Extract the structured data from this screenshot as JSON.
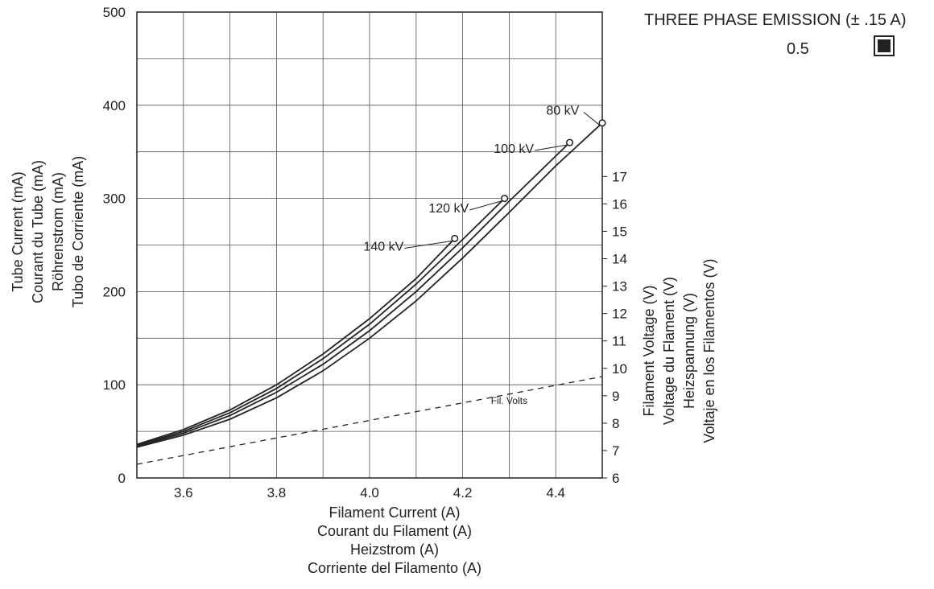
{
  "legend": {
    "title": "THREE PHASE EMISSION (± .15 A)",
    "value": "0.5",
    "swatch_color": "#222222"
  },
  "chart_data": {
    "type": "line",
    "xlabel": [
      "Filament Current (A)",
      "Courant du Filament (A)",
      "Heizstrom (A)",
      "Corriente del Filamento (A)"
    ],
    "ylabel": [
      "Tube Current (mA)",
      "Courant du Tube (mA)",
      "Röhrenstrom (mA)",
      "Tubo de Corriente (mA)"
    ],
    "y2label": [
      "Filament Voltage (V)",
      "Voltage du Flament  (V)",
      "Heizspannung (V)",
      "Voltaje en los Filamentos (V)"
    ],
    "xlim": [
      3.5,
      4.5
    ],
    "ylim": [
      0,
      500
    ],
    "y2lim": [
      6,
      23
    ],
    "x_ticks": [
      "3.6",
      "3.8",
      "4.0",
      "4.2",
      "4.4"
    ],
    "x_tick_values": [
      3.6,
      3.8,
      4.0,
      4.2,
      4.4
    ],
    "y_ticks": [
      "0",
      "100",
      "200",
      "300",
      "400",
      "500"
    ],
    "y_tick_values": [
      0,
      100,
      200,
      300,
      400,
      500
    ],
    "y2_ticks": [
      "6",
      "7",
      "8",
      "9",
      "10",
      "11",
      "12",
      "13",
      "14",
      "15",
      "16",
      "17"
    ],
    "y2_tick_values": [
      6,
      7,
      8,
      9,
      10,
      11,
      12,
      13,
      14,
      15,
      16,
      17
    ],
    "grid": true,
    "series": [
      {
        "name": "80 kV",
        "style": "solid",
        "end_marker": true,
        "label_pos": [
          4.415,
          390
        ],
        "x": [
          3.5,
          3.6,
          3.7,
          3.8,
          3.9,
          4.0,
          4.1,
          4.2,
          4.3,
          4.4,
          4.5
        ],
        "y": [
          33,
          46,
          63,
          86,
          115,
          150,
          190,
          236,
          285,
          335,
          381
        ]
      },
      {
        "name": "100 kV",
        "style": "solid",
        "end_marker": true,
        "label_pos": [
          4.31,
          349
        ],
        "x": [
          3.5,
          3.6,
          3.7,
          3.8,
          3.9,
          4.0,
          4.1,
          4.2,
          4.3,
          4.43
        ],
        "y": [
          34,
          48,
          67,
          92,
          122,
          158,
          200,
          247,
          297,
          360
        ]
      },
      {
        "name": "120 kV",
        "style": "solid",
        "end_marker": true,
        "label_pos": [
          4.17,
          285
        ],
        "x": [
          3.5,
          3.6,
          3.7,
          3.8,
          3.9,
          4.0,
          4.1,
          4.2,
          4.29
        ],
        "y": [
          35,
          50,
          70,
          96,
          128,
          165,
          208,
          256,
          300
        ]
      },
      {
        "name": "140 kV",
        "style": "solid",
        "end_marker": true,
        "label_pos": [
          4.03,
          244
        ],
        "x": [
          3.5,
          3.6,
          3.7,
          3.8,
          3.9,
          4.0,
          4.1,
          4.183
        ],
        "y": [
          36,
          52,
          73,
          100,
          133,
          171,
          214,
          257
        ]
      },
      {
        "name": "Fil. Volts",
        "style": "dashed",
        "axis": "y2",
        "end_marker": false,
        "label_pos": [
          4.3,
          8.7
        ],
        "x": [
          3.5,
          3.6,
          3.7,
          3.8,
          3.9,
          4.0,
          4.1,
          4.2,
          4.3,
          4.4,
          4.5
        ],
        "y": [
          6.5,
          6.82,
          7.14,
          7.46,
          7.78,
          8.1,
          8.42,
          8.74,
          9.06,
          9.38,
          9.7
        ]
      }
    ]
  }
}
